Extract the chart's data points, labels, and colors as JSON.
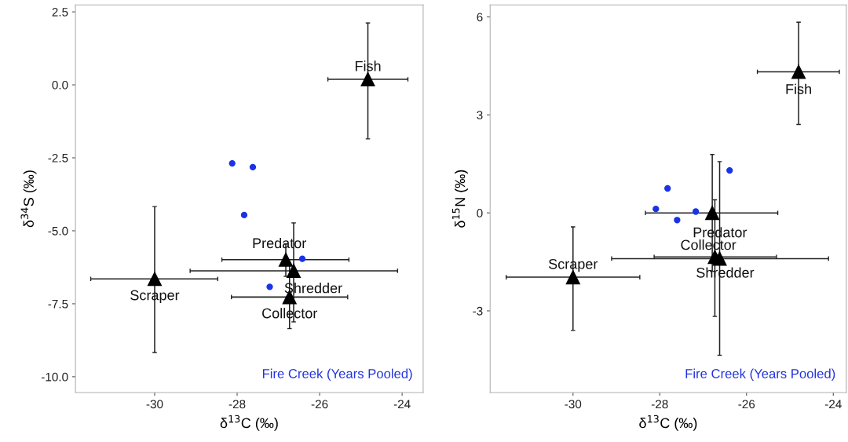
{
  "chart_data": [
    {
      "type": "scatter",
      "xlabel": "δ$^{13}$C (‰)",
      "ylabel": "δ$^{34}$S (‰)",
      "xlim": [
        -31.92,
        -23.49
      ],
      "xticks": [
        -30,
        -28,
        -26,
        -24
      ],
      "ylim": [
        -10.54,
        2.74
      ],
      "yticks": [
        {
          "value": 2.5,
          "label": "2.5"
        },
        {
          "value": 0,
          "label": "0.0"
        },
        {
          "value": -2.5,
          "label": "-2.5"
        },
        {
          "value": -5,
          "label": "-5.0"
        },
        {
          "value": -7.5,
          "label": "-7.5"
        },
        {
          "value": -10,
          "label": "-10.0"
        }
      ],
      "grid": false,
      "legend": false,
      "series": [
        {
          "color": "#1a33e6",
          "marker": "circle",
          "x": [
            -28.12,
            -27.62,
            -27.83,
            -26.42,
            -27.21
          ],
          "values": [
            -2.69,
            -2.82,
            -4.46,
            -5.96,
            -6.92
          ]
        },
        {
          "color": "#000000",
          "marker": "triangle",
          "x": [
            -24.83,
            -26.82,
            -26.63,
            -26.73,
            -30.0
          ],
          "values": [
            0.19,
            -5.99,
            -6.37,
            -7.27,
            -6.65
          ],
          "xerrors": [
            [
              -25.8,
              -23.86
            ],
            [
              -28.37,
              -25.29
            ],
            [
              -29.14,
              -24.11
            ],
            [
              -28.14,
              -25.32
            ],
            [
              -31.55,
              -28.47
            ]
          ],
          "errors": [
            [
              -1.85,
              2.12
            ],
            [
              -6.56,
              -5.45
            ],
            [
              -8.12,
              -4.73
            ],
            [
              -8.35,
              -6.19
            ],
            [
              -9.17,
              -4.17
            ]
          ]
        }
      ],
      "annotations": [
        {
          "text": "Fish",
          "x": -24.83,
          "y": 0.19
        },
        {
          "text": "Predator",
          "x": -26.82,
          "y": -5.99
        },
        {
          "text": "Shredder",
          "x": -26.63,
          "y": -6.37
        },
        {
          "text": "Collector",
          "x": -26.73,
          "y": -7.27
        },
        {
          "text": "Scraper",
          "x": -30.0,
          "y": -6.65
        },
        "Fire Creek (Years Pooled)"
      ]
    },
    {
      "type": "scatter",
      "xlabel": "δ$^{13}$C (‰)",
      "ylabel": "δ$^{15}$N (‰)",
      "xlim": [
        -31.91,
        -23.7
      ],
      "xticks": [
        -30,
        -28,
        -26,
        -24
      ],
      "ylim": [
        -5.5,
        6.37
      ],
      "yticks": [
        6,
        3,
        0,
        -3
      ],
      "grid": false,
      "legend": false,
      "series": [
        {
          "color": "#1a33e6",
          "marker": "circle",
          "x": [
            -28.09,
            -27.82,
            -27.17,
            -26.39,
            -27.6
          ],
          "values": [
            0.12,
            0.75,
            0.04,
            1.3,
            -0.22
          ]
        },
        {
          "color": "#000000",
          "marker": "triangle",
          "x": [
            -24.8,
            -26.79,
            -26.62,
            -26.73,
            -30.0
          ],
          "values": [
            4.32,
            0.0,
            -1.4,
            -1.35,
            -1.97
          ],
          "xerrors": [
            [
              -25.75,
              -23.86
            ],
            [
              -28.33,
              -25.28
            ],
            [
              -29.11,
              -24.11
            ],
            [
              -28.13,
              -25.31
            ],
            [
              -31.54,
              -28.46
            ]
          ],
          "errors": [
            [
              2.71,
              5.84
            ],
            [
              -1.79,
              1.79
            ],
            [
              -4.36,
              1.57
            ],
            [
              -3.17,
              0.4
            ],
            [
              -3.6,
              -0.43
            ]
          ]
        }
      ],
      "annotations": [
        {
          "text": "Fish",
          "x": -24.8,
          "y": 4.32
        },
        {
          "text": "Predator",
          "x": -26.79,
          "y": 0.0
        },
        {
          "text": "Shredder",
          "x": -26.62,
          "y": -1.4
        },
        {
          "text": "Collector",
          "x": -26.73,
          "y": -1.35
        },
        {
          "text": "Scraper",
          "x": -30.0,
          "y": -1.97
        },
        "Fire Creek (Years Pooled)"
      ]
    }
  ]
}
